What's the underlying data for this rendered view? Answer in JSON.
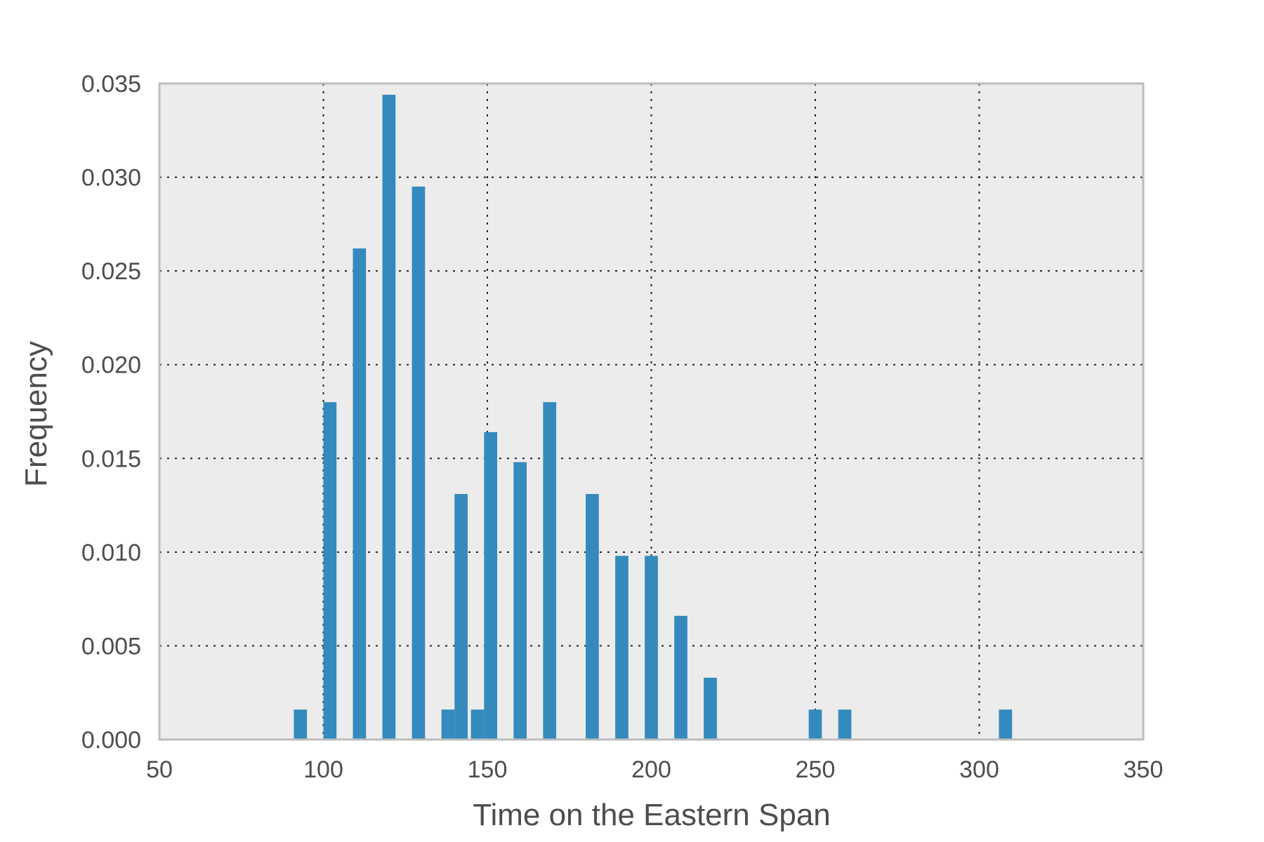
{
  "chart_data": {
    "type": "bar",
    "title": "",
    "xlabel": "Time on the Eastern Span",
    "ylabel": "Frequency",
    "xlim": [
      50,
      350
    ],
    "ylim": [
      0,
      0.035
    ],
    "xticks": [
      50,
      100,
      150,
      200,
      250,
      300,
      350
    ],
    "xtick_labels": [
      "50",
      "100",
      "150",
      "200",
      "250",
      "300",
      "350"
    ],
    "yticks": [
      0.0,
      0.005,
      0.01,
      0.015,
      0.02,
      0.025,
      0.03,
      0.035
    ],
    "ytick_labels": [
      "0.000",
      "0.005",
      "0.010",
      "0.015",
      "0.020",
      "0.025",
      "0.030",
      "0.035"
    ],
    "grid": true,
    "bar_color": "#348abd",
    "background_color": "#ececec",
    "bars": [
      {
        "x": 93,
        "value": 0.0016
      },
      {
        "x": 102,
        "value": 0.018
      },
      {
        "x": 111,
        "value": 0.0262
      },
      {
        "x": 120,
        "value": 0.0344
      },
      {
        "x": 129,
        "value": 0.0295
      },
      {
        "x": 138,
        "value": 0.0016
      },
      {
        "x": 142,
        "value": 0.0131
      },
      {
        "x": 147,
        "value": 0.0016
      },
      {
        "x": 151,
        "value": 0.0164
      },
      {
        "x": 160,
        "value": 0.0148
      },
      {
        "x": 169,
        "value": 0.018
      },
      {
        "x": 182,
        "value": 0.0131
      },
      {
        "x": 191,
        "value": 0.0098
      },
      {
        "x": 200,
        "value": 0.0098
      },
      {
        "x": 209,
        "value": 0.0066
      },
      {
        "x": 218,
        "value": 0.0033
      },
      {
        "x": 250,
        "value": 0.0016
      },
      {
        "x": 259,
        "value": 0.0016
      },
      {
        "x": 308,
        "value": 0.0016
      }
    ],
    "bar_width": 4
  }
}
